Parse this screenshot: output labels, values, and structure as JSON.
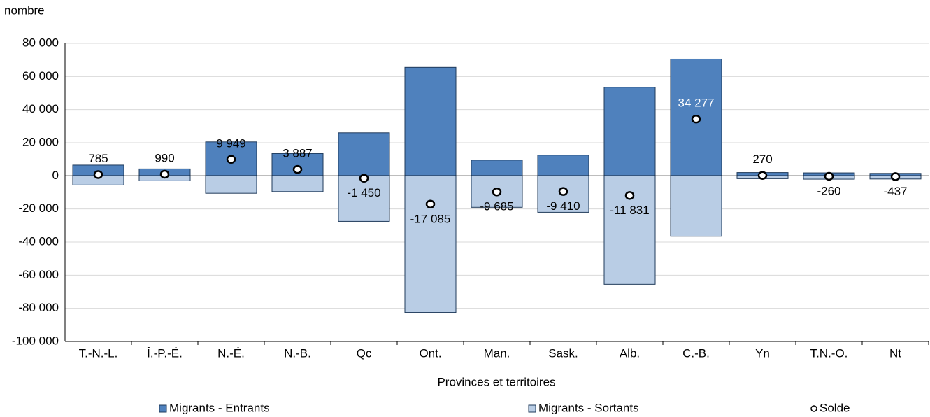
{
  "chart_data": {
    "type": "bar",
    "y_label": "nombre",
    "x_label": "Provinces et territoires",
    "categories": [
      "T.-N.-L.",
      "Î.-P.-É.",
      "N.-É.",
      "N.-B.",
      "Qc",
      "Ont.",
      "Man.",
      "Sask.",
      "Alb.",
      "C.-B.",
      "Yn",
      "T.N.-O.",
      "Nt"
    ],
    "series": [
      {
        "name": "Migrants - Entrants",
        "color": "#4f81bd",
        "values": [
          6500,
          4200,
          20500,
          13500,
          26000,
          65500,
          9500,
          12500,
          53500,
          70500,
          2000,
          1800,
          1500
        ]
      },
      {
        "name": "Migrants - Sortants",
        "color": "#b9cde5",
        "values": [
          -5500,
          -3000,
          -10500,
          -9500,
          -27500,
          -82500,
          -19000,
          -22000,
          -65500,
          -36500,
          -1700,
          -2000,
          -1900
        ]
      },
      {
        "name": "Solde",
        "color": "#ffffff",
        "values": [
          785,
          990,
          9949,
          3887,
          -1450,
          -17085,
          -9685,
          -9410,
          -11831,
          34277,
          270,
          -260,
          -437
        ],
        "value_labels": [
          "785",
          "990",
          "9 949",
          "3 887",
          "-1 450",
          "-17 085",
          "-9 685",
          "-9 410",
          "-11 831",
          "34 277",
          "270",
          "-260",
          "-437"
        ]
      }
    ],
    "ylim": [
      -100000,
      80000
    ],
    "yticks": [
      {
        "value": -100000,
        "label": "-100 000"
      },
      {
        "value": -80000,
        "label": "-80 000"
      },
      {
        "value": -60000,
        "label": "-60 000"
      },
      {
        "value": -40000,
        "label": "-40 000"
      },
      {
        "value": -20000,
        "label": "-20 000"
      },
      0,
      {
        "value": 20000,
        "label": "20 000"
      },
      {
        "value": 40000,
        "label": "40 000"
      },
      {
        "value": 60000,
        "label": "60 000"
      },
      {
        "value": 80000,
        "label": "80 000"
      }
    ],
    "grid": true
  }
}
